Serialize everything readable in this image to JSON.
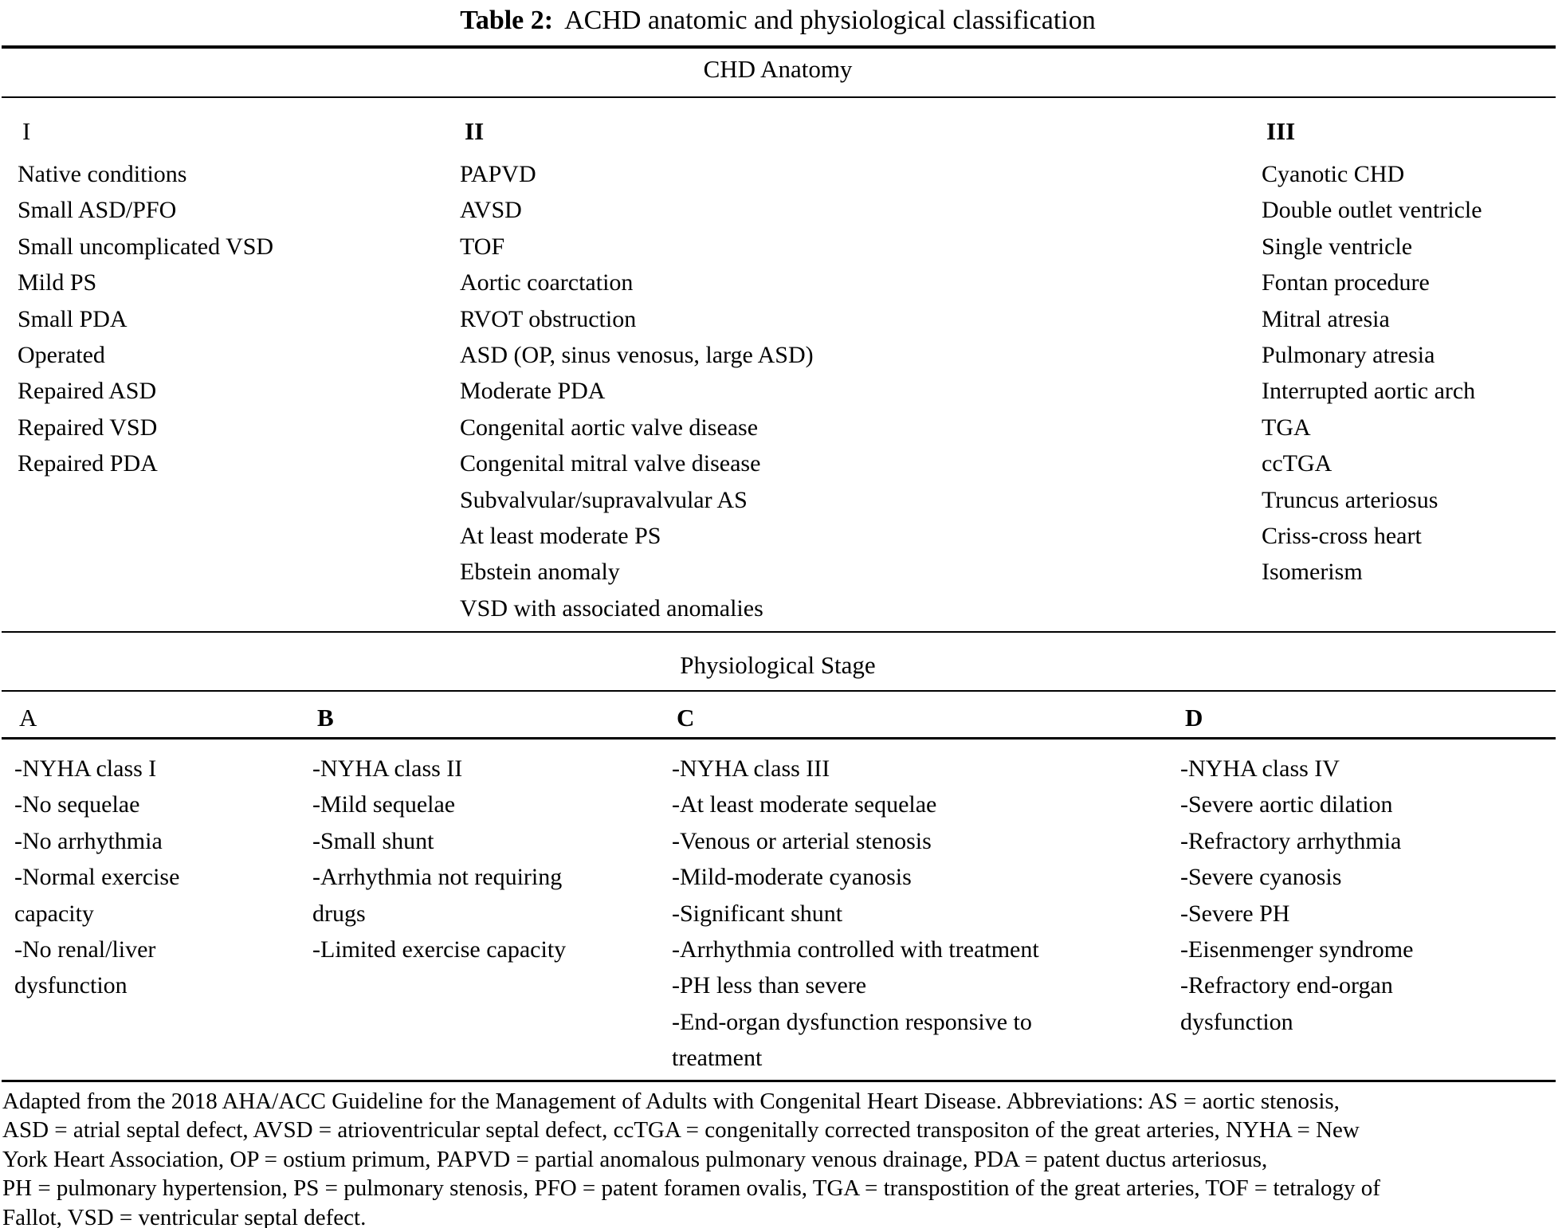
{
  "document": {
    "title": {
      "label": "Table 2:",
      "text": "ACHD anatomic and physiological classification"
    },
    "anatomy": {
      "heading": "CHD Anatomy",
      "columns": [
        {
          "header": "I",
          "items": [
            "Native conditions",
            "Small ASD/PFO",
            "Small uncomplicated VSD",
            "Mild PS",
            "Small PDA",
            "Operated",
            "Repaired ASD",
            "Repaired VSD",
            "Repaired PDA"
          ]
        },
        {
          "header": "II",
          "items": [
            "PAPVD",
            "AVSD",
            "TOF",
            "Aortic coarctation",
            "RVOT obstruction",
            "ASD (OP, sinus venosus, large ASD)",
            "Moderate PDA",
            "Congenital aortic valve disease",
            "Congenital mitral valve disease",
            "Subvalvular/supravalvular AS",
            "At least moderate PS",
            "Ebstein anomaly",
            "VSD with associated anomalies"
          ]
        },
        {
          "header": "III",
          "items": [
            "Cyanotic CHD",
            "Double outlet ventricle",
            "Single ventricle",
            "Fontan procedure",
            "Mitral atresia",
            "Pulmonary atresia",
            "Interrupted aortic arch",
            "TGA",
            "ccTGA",
            "Truncus arteriosus",
            "Criss-cross heart",
            "Isomerism"
          ]
        }
      ]
    },
    "physiology": {
      "heading": "Physiological Stage",
      "columns": [
        {
          "header": "A",
          "items": [
            "-NYHA class I",
            "-No sequelae",
            "-No arrhythmia",
            "-Normal exercise capacity",
            "-No renal/liver dysfunction"
          ]
        },
        {
          "header": "B",
          "items": [
            "-NYHA class II",
            "-Mild sequelae",
            "-Small shunt",
            "-Arrhythmia not requiring drugs",
            "-Limited exercise capacity"
          ]
        },
        {
          "header": "C",
          "items": [
            "-NYHA class III",
            "-At least moderate sequelae",
            "-Venous or arterial stenosis",
            "-Mild-moderate cyanosis",
            "-Significant shunt",
            "-Arrhythmia controlled with treatment",
            "-PH less than severe",
            "-End-organ dysfunction responsive to treatment"
          ]
        },
        {
          "header": "D",
          "items": [
            "-NYHA class IV",
            "-Severe aortic dilation",
            "-Refractory arrhythmia",
            "-Severe cyanosis",
            "-Severe PH",
            "-Eisenmenger syndrome",
            "-Refractory end-organ dysfunction"
          ]
        }
      ]
    },
    "footnote_lines": [
      "Adapted from the 2018 AHA/ACC Guideline for the Management of Adults with Congenital Heart Disease. Abbreviations: AS = aortic stenosis,",
      "ASD = atrial septal defect, AVSD = atrioventricular septal defect, ccTGA = congenitally corrected transpositon of the great arteries, NYHA = New",
      "York Heart Association, OP = ostium primum, PAPVD = partial anomalous pulmonary venous drainage, PDA = patent ductus arteriosus,",
      "PH = pulmonary hypertension, PS = pulmonary stenosis, PFO = patent foramen ovalis, TGA = transpostition of the great arteries, TOF = tetralogy of",
      "Fallot, VSD = ventricular septal defect."
    ]
  }
}
